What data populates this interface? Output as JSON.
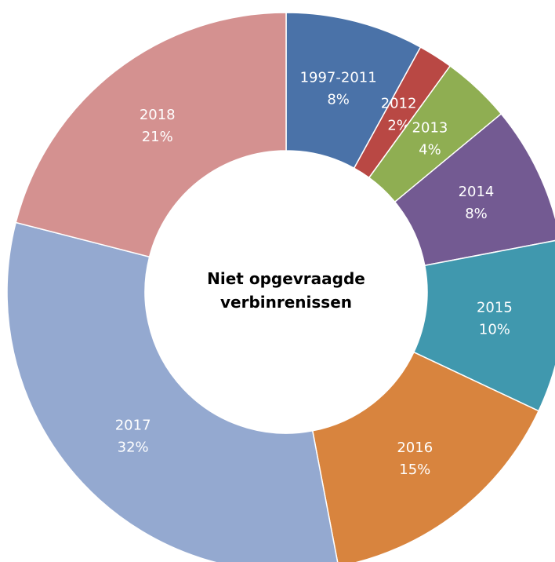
{
  "chart_data": {
    "type": "donut",
    "title": "Niet opgevraagde verbinrenissen",
    "categories": [
      "1997-2011",
      "2012",
      "2013",
      "2014",
      "2015",
      "2016",
      "2017",
      "2018"
    ],
    "values": [
      8,
      2,
      4,
      8,
      10,
      15,
      32,
      21
    ],
    "value_labels": [
      "8%",
      "2%",
      "4%",
      "8%",
      "10%",
      "15%",
      "32%",
      "21%"
    ],
    "colors": [
      "#4a72a8",
      "#b94844",
      "#8fae52",
      "#735a92",
      "#4098ae",
      "#d8843e",
      "#94a9d0",
      "#d49190"
    ]
  }
}
